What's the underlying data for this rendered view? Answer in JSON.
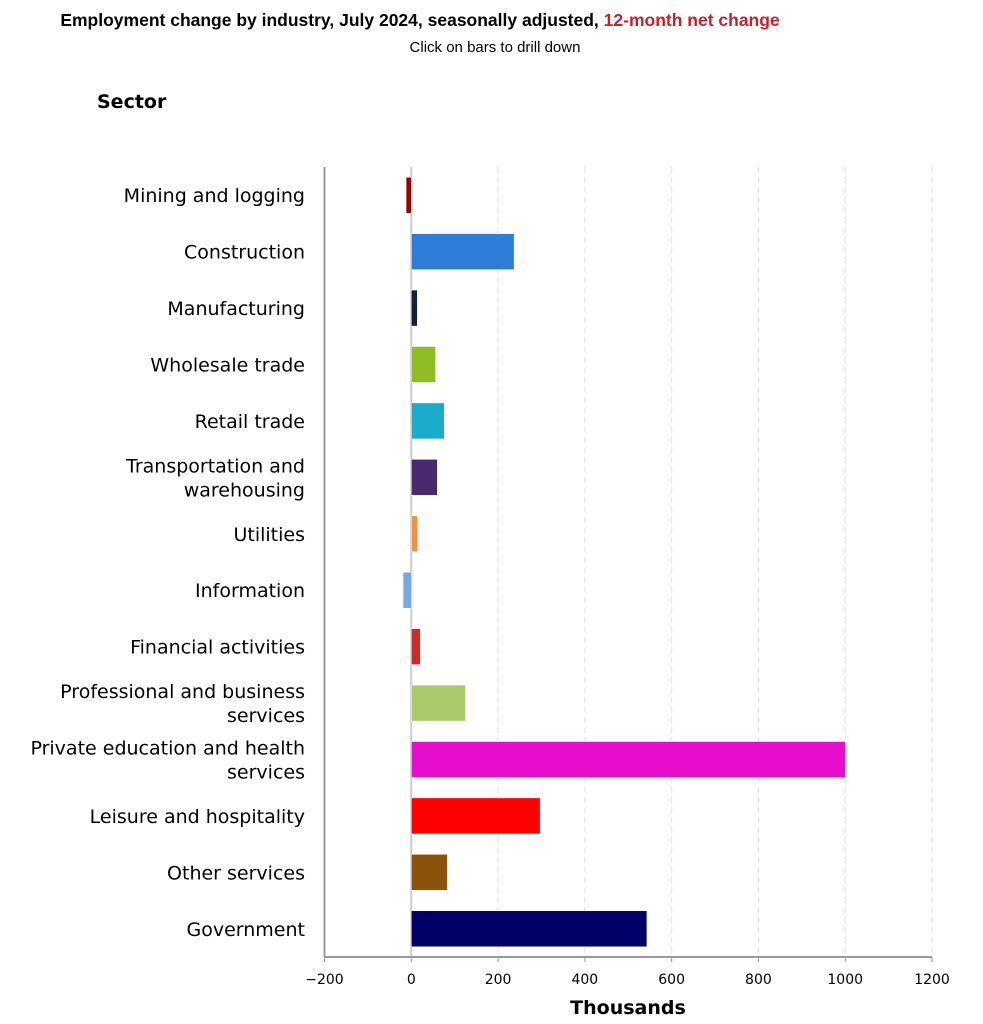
{
  "chart_data": {
    "type": "bar",
    "orientation": "horizontal",
    "title": "Employment change by industry, July 2024, seasonally adjusted,",
    "title_highlight": "12-month net change",
    "subtitle": "Click on bars to drill down",
    "ylabel": "Sector",
    "xlabel": "Thousands",
    "xlim": [
      -200,
      1200
    ],
    "xticks": [
      "−200",
      "0",
      "200",
      "400",
      "600",
      "800",
      "1000",
      "1200"
    ],
    "xtick_values": [
      -200,
      0,
      200,
      400,
      600,
      800,
      1000,
      1200
    ],
    "grid": "vertical dashed",
    "categories": [
      [
        "Mining and logging"
      ],
      [
        "Construction"
      ],
      [
        "Manufacturing"
      ],
      [
        "Wholesale trade"
      ],
      [
        "Retail trade"
      ],
      [
        "Transportation and",
        "warehousing"
      ],
      [
        "Utilities"
      ],
      [
        "Information"
      ],
      [
        "Financial activities"
      ],
      [
        "Professional and business",
        "services"
      ],
      [
        "Private education and health",
        "services"
      ],
      [
        "Leisure and hospitality"
      ],
      [
        "Other services"
      ],
      [
        "Government"
      ]
    ],
    "values": [
      -12,
      237,
      14,
      56,
      76,
      60,
      14,
      -19,
      21,
      125,
      1000,
      297,
      83,
      543
    ],
    "colors": [
      "#990000",
      "#2e7dd7",
      "#0f2238",
      "#8fbc23",
      "#1aaccc",
      "#4a2a6e",
      "#f39140",
      "#7aa6e8",
      "#cc2b2b",
      "#a9cb6b",
      "#e80fcc",
      "#ff0000",
      "#8b520a",
      "#000066"
    ]
  }
}
